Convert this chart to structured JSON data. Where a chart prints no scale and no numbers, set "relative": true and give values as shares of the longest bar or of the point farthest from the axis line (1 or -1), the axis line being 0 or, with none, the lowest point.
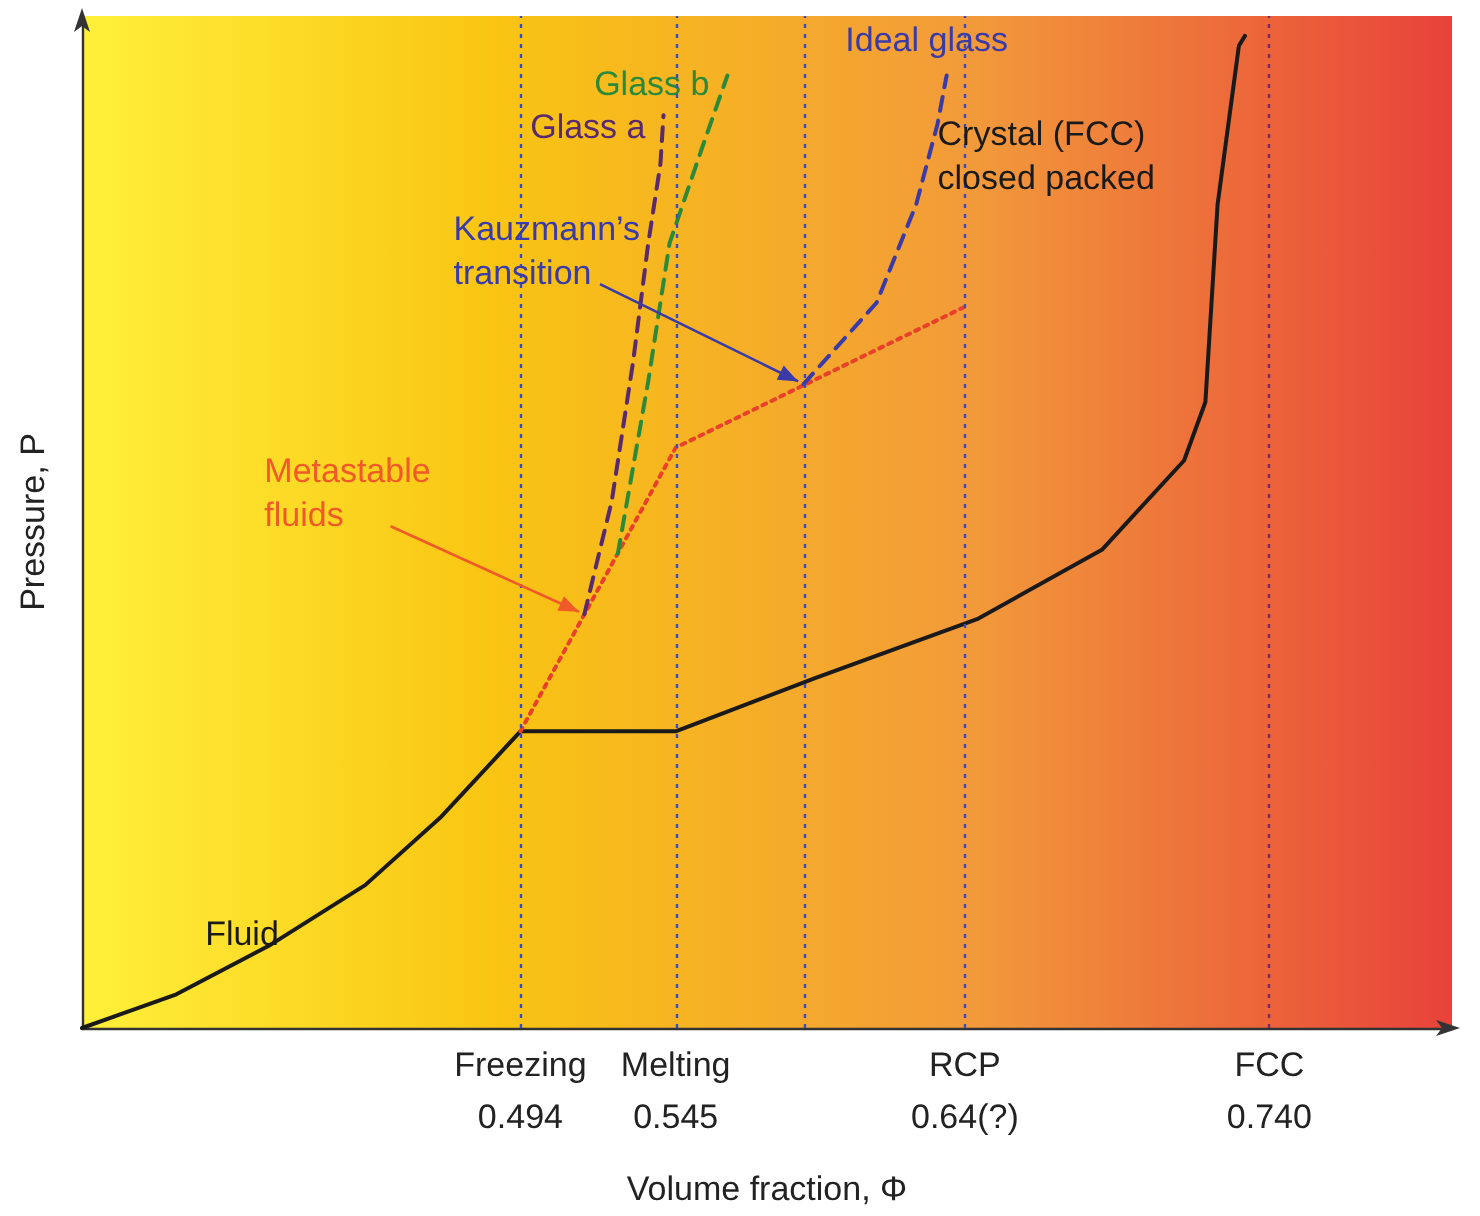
{
  "chart_data": {
    "type": "line",
    "relative": true,
    "xlabel": "Volume fraction, Φ",
    "ylabel": "Pressure, P",
    "xlim": [
      0.35,
      0.8
    ],
    "xticks": [
      0.494,
      0.545,
      {
        "value": 0.64,
        "label": "0.64(?)"
      },
      {
        "value": 0.74,
        "label": "0.740"
      }
    ],
    "marker": "none",
    "line_style": "solid",
    "series": [
      {
        "color": "#1a1a1a",
        "x": [
          0.35,
          0.381,
          0.412,
          0.443,
          0.468,
          0.494,
          0.545,
          0.591,
          0.644,
          0.685,
          0.712,
          0.719,
          0.723,
          0.73,
          0.732
        ],
        "values": [
          0,
          0.034,
          0.084,
          0.144,
          0.213,
          0.299,
          0.299,
          0.353,
          0.412,
          0.482,
          0.572,
          0.631,
          0.83,
          0.99,
          1
        ]
      },
      {
        "color": "#e8402a",
        "line_style": "dotted",
        "x": [
          0.494,
          0.545,
          0.64
        ],
        "values": [
          0.299,
          0.585,
          0.727
        ]
      },
      {
        "name": "Glass a",
        "color": "#5a2a6e",
        "line_style": "dashed",
        "x": [
          0.515,
          0.524,
          0.531,
          0.536,
          0.54,
          0.541
        ],
        "values": [
          0.417,
          0.531,
          0.671,
          0.791,
          0.871,
          0.92
        ]
      },
      {
        "name": "Glass b",
        "color": "#2a8a3a",
        "line_style": "dashed",
        "x": [
          0.526,
          0.536,
          0.543,
          0.554,
          0.562
        ],
        "values": [
          0.478,
          0.652,
          0.791,
          0.89,
          0.96
        ]
      },
      {
        "name": "Ideal glass",
        "color": "#3a3aa8",
        "line_style": "dashed",
        "x": [
          0.587,
          0.611,
          0.624,
          0.631,
          0.634
        ],
        "values": [
          0.649,
          0.731,
          0.83,
          0.911,
          0.96
        ]
      }
    ],
    "ref_lines": [
      {
        "axis": "x",
        "value": 0.494,
        "label": "Freezing",
        "color": "#3a4ac0",
        "line_style": "dotted"
      },
      {
        "axis": "x",
        "value": 0.545,
        "label": "Melting",
        "color": "#3a4ac0",
        "line_style": "dotted"
      },
      {
        "axis": "x",
        "value": 0.587,
        "color": "#3a4ac0",
        "line_style": "dotted"
      },
      {
        "axis": "x",
        "value": 0.64,
        "label": "RCP",
        "color": "#3a4ac0",
        "line_style": "dotted"
      },
      {
        "axis": "x",
        "value": 0.74,
        "label": "FCC",
        "color": "#7a2a5a",
        "line_style": "dotted"
      }
    ],
    "annotations": [
      {
        "text": "Kauzmann’s\ntransition",
        "x": 0.587,
        "y": 0.649
      },
      {
        "text": "Metastable\nfluids",
        "x": 0.515,
        "y": 0.417
      },
      {
        "text": "Fluid",
        "x": 0.443,
        "y": 0.144
      },
      {
        "text": "Crystal (FCC)\nclosed packed",
        "x": 0.723,
        "y": 0.83
      }
    ]
  }
}
